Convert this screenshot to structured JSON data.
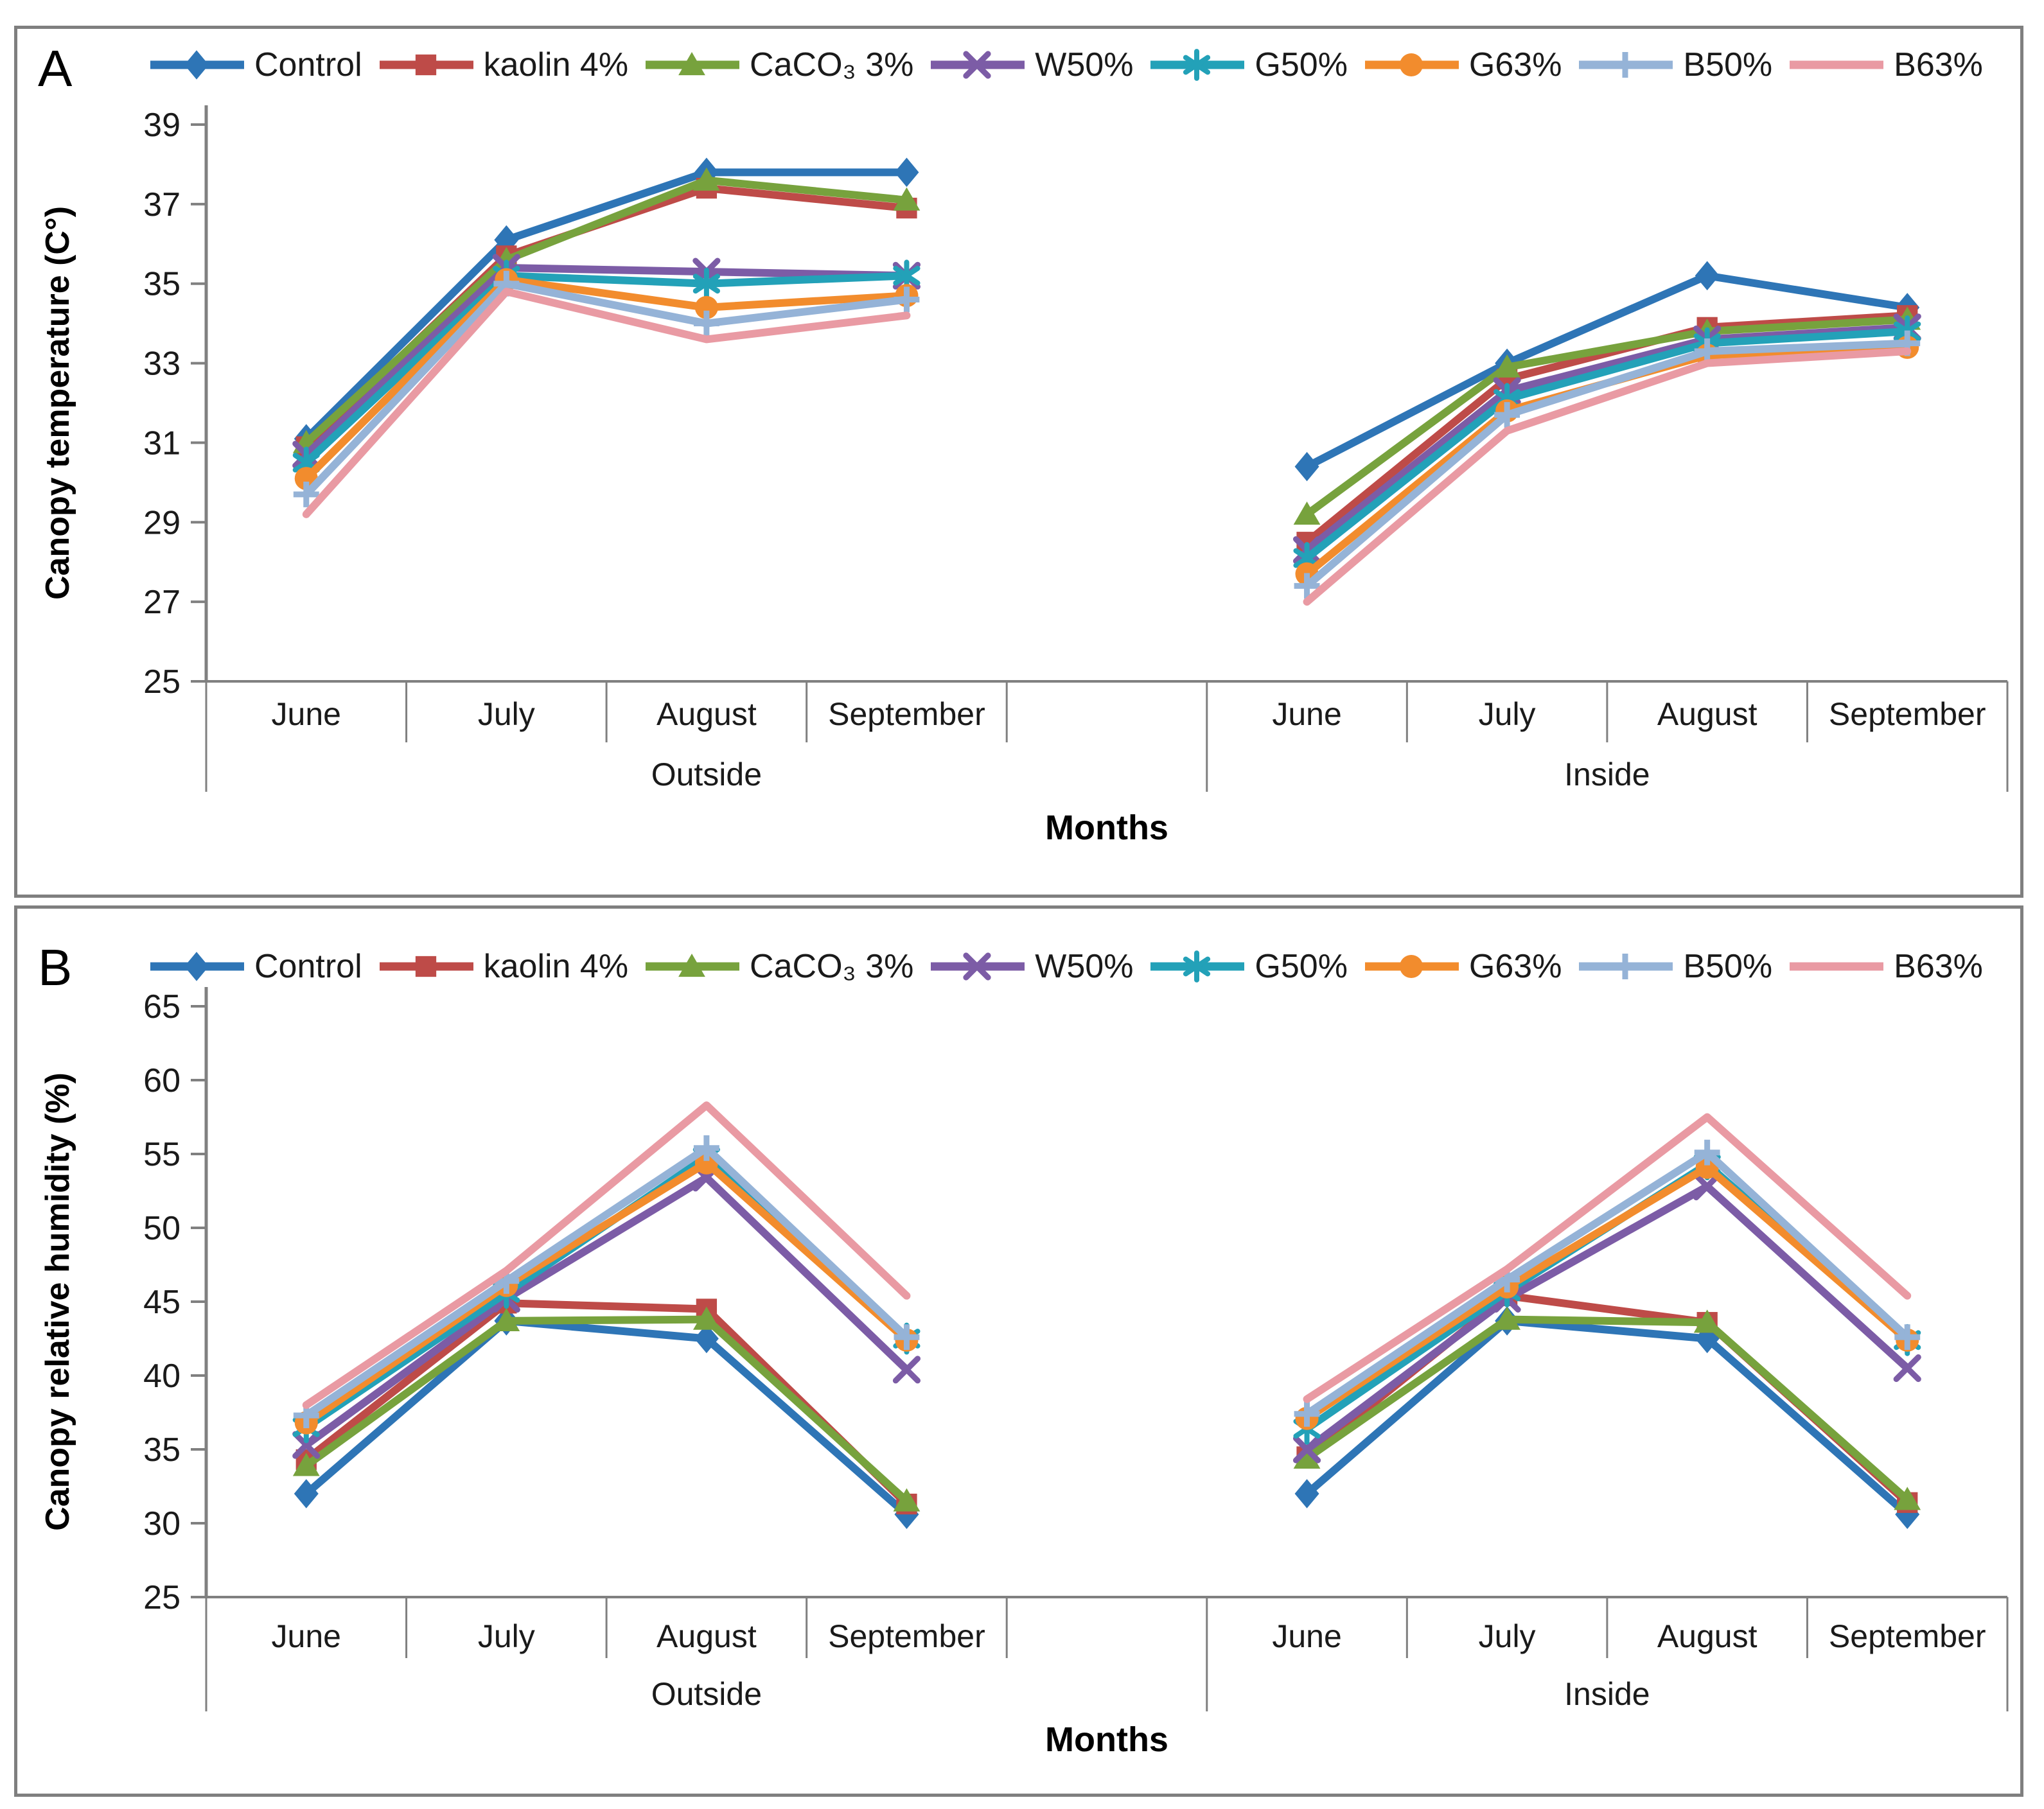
{
  "panels": {
    "a_label": "A",
    "b_label": "B"
  },
  "chart_data": [
    {
      "type": "line",
      "panel": "A",
      "title": "",
      "ylabel": "Canopy temperature (C°)",
      "xlabel": "Months",
      "ylim": [
        25,
        39
      ],
      "yticks": [
        25,
        27,
        29,
        31,
        33,
        35,
        37,
        39
      ],
      "grid": false,
      "legend_position": "top",
      "groups": [
        "Outside",
        "Inside"
      ],
      "categories": [
        "June",
        "July",
        "August",
        "September"
      ],
      "series": [
        {
          "name": "Control",
          "color": "#2E75B6",
          "marker": "diamond",
          "outside": [
            31.1,
            36.1,
            37.8,
            37.8
          ],
          "inside": [
            30.4,
            33.0,
            35.2,
            34.4
          ]
        },
        {
          "name": "kaolin 4%",
          "color": "#BE4B48",
          "marker": "square",
          "outside": [
            30.9,
            35.7,
            37.4,
            36.9
          ],
          "inside": [
            28.5,
            32.6,
            33.9,
            34.2
          ]
        },
        {
          "name": "CaCO₃ 3%",
          "color": "#77A23D",
          "marker": "triangle",
          "outside": [
            31.0,
            35.6,
            37.6,
            37.1
          ],
          "inside": [
            29.2,
            32.9,
            33.8,
            34.1
          ]
        },
        {
          "name": "W50%",
          "color": "#7C5CA6",
          "marker": "x",
          "outside": [
            30.7,
            35.4,
            35.3,
            35.2
          ],
          "inside": [
            28.3,
            32.3,
            33.6,
            33.9
          ]
        },
        {
          "name": "G50%",
          "color": "#23A1B8",
          "marker": "star",
          "outside": [
            30.5,
            35.2,
            35.0,
            35.2
          ],
          "inside": [
            28.1,
            32.1,
            33.5,
            33.8
          ]
        },
        {
          "name": "G63%",
          "color": "#F28C2D",
          "marker": "circle",
          "outside": [
            30.1,
            35.1,
            34.4,
            34.7
          ],
          "inside": [
            27.7,
            31.8,
            33.2,
            33.4
          ]
        },
        {
          "name": "B50%",
          "color": "#95B3D7",
          "marker": "plus",
          "outside": [
            29.7,
            35.0,
            34.0,
            34.6
          ],
          "inside": [
            27.4,
            31.7,
            33.3,
            33.5
          ]
        },
        {
          "name": "B63%",
          "color": "#E99AA3",
          "marker": "none",
          "outside": [
            29.2,
            34.8,
            33.6,
            34.2
          ],
          "inside": [
            27.0,
            31.3,
            33.0,
            33.3
          ]
        }
      ]
    },
    {
      "type": "line",
      "panel": "B",
      "title": "",
      "ylabel": "Canopy relative humidity (%)",
      "xlabel": "Months",
      "ylim": [
        25,
        65
      ],
      "yticks": [
        25,
        30,
        35,
        40,
        45,
        50,
        55,
        60,
        65
      ],
      "grid": false,
      "legend_position": "top",
      "groups": [
        "Outside",
        "Inside"
      ],
      "categories": [
        "June",
        "July",
        "August",
        "September"
      ],
      "series": [
        {
          "name": "Control",
          "color": "#2E75B6",
          "marker": "diamond",
          "outside": [
            32.0,
            43.7,
            42.5,
            30.6
          ],
          "inside": [
            32.0,
            43.7,
            42.5,
            30.6
          ]
        },
        {
          "name": "kaolin 4%",
          "color": "#BE4B48",
          "marker": "square",
          "outside": [
            34.3,
            44.9,
            44.5,
            31.3
          ],
          "inside": [
            34.5,
            45.4,
            43.6,
            31.4
          ]
        },
        {
          "name": "CaCO₃ 3%",
          "color": "#77A23D",
          "marker": "triangle",
          "outside": [
            33.9,
            43.7,
            43.8,
            31.5
          ],
          "inside": [
            34.4,
            43.8,
            43.6,
            31.6
          ]
        },
        {
          "name": "W50%",
          "color": "#7C5CA6",
          "marker": "x",
          "outside": [
            35.3,
            45.2,
            53.4,
            40.4
          ],
          "inside": [
            35.0,
            45.2,
            52.8,
            40.5
          ]
        },
        {
          "name": "G50%",
          "color": "#23A1B8",
          "marker": "star",
          "outside": [
            36.5,
            45.6,
            54.8,
            42.5
          ],
          "inside": [
            36.4,
            45.7,
            54.3,
            42.4
          ]
        },
        {
          "name": "G63%",
          "color": "#F28C2D",
          "marker": "circle",
          "outside": [
            36.8,
            46.1,
            54.4,
            42.4
          ],
          "inside": [
            37.1,
            46.0,
            54.1,
            42.4
          ]
        },
        {
          "name": "B50%",
          "color": "#95B3D7",
          "marker": "plus",
          "outside": [
            37.3,
            46.4,
            55.4,
            42.6
          ],
          "inside": [
            37.4,
            46.5,
            55.1,
            42.6
          ]
        },
        {
          "name": "B63%",
          "color": "#E99AA3",
          "marker": "none",
          "outside": [
            38.0,
            47.1,
            58.3,
            45.4
          ],
          "inside": [
            38.4,
            47.2,
            57.5,
            45.4
          ]
        }
      ]
    }
  ],
  "style_colors": {
    "axis": "#808080",
    "text": "#1a1a1a"
  }
}
